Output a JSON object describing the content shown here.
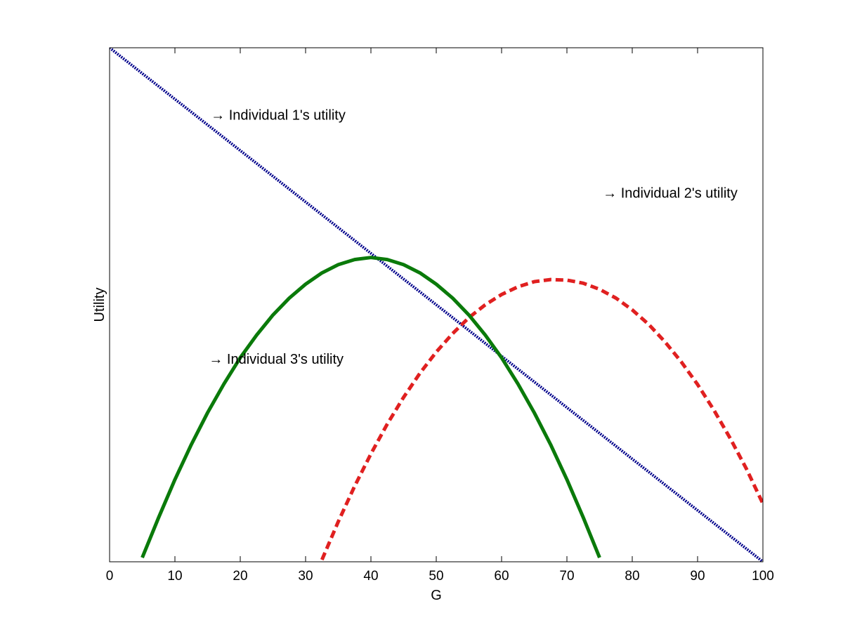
{
  "chart_data": {
    "type": "line",
    "title": "",
    "xlabel": "G",
    "ylabel": "Utility",
    "xlim": [
      0,
      100
    ],
    "ylim": [
      0,
      100
    ],
    "xticks": [
      "0",
      "10",
      "20",
      "30",
      "40",
      "50",
      "60",
      "70",
      "80",
      "90",
      "100"
    ],
    "yticks_shown": false,
    "grid": false,
    "legend": "none",
    "x": [
      0,
      2.5,
      5,
      7.5,
      10,
      12.5,
      15,
      17.5,
      20,
      22.5,
      25,
      27.5,
      30,
      32.5,
      35,
      37.5,
      40,
      42.5,
      45,
      47.5,
      50,
      52.5,
      55,
      57.5,
      60,
      62.5,
      65,
      67.5,
      70,
      72.5,
      75,
      77.5,
      80,
      82.5,
      85,
      87.5,
      90,
      92.5,
      95,
      97.5,
      100
    ],
    "series": [
      {
        "key": "ind1",
        "color": "#00008B",
        "style": "dotted",
        "values": [
          100,
          97.5,
          95,
          92.5,
          90,
          87.5,
          85,
          82.5,
          80,
          77.5,
          75,
          72.5,
          70,
          67.5,
          65,
          62.5,
          60,
          57.5,
          55,
          52.5,
          50,
          47.5,
          45,
          42.5,
          40,
          37.5,
          35,
          32.5,
          30,
          27.5,
          25,
          22.5,
          20,
          17.5,
          15,
          12.5,
          10,
          7.5,
          5,
          2.5,
          0
        ]
      },
      {
        "key": "ind2",
        "color": "#E02020",
        "style": "dashed",
        "values": [
          null,
          null,
          null,
          null,
          null,
          null,
          null,
          null,
          null,
          null,
          null,
          null,
          null,
          0.4,
          7.8,
          14.7,
          21.0,
          26.8,
          32.0,
          36.7,
          40.8,
          44.4,
          47.5,
          50.0,
          52.0,
          53.5,
          54.5,
          54.9,
          54.8,
          54.2,
          53.0,
          51.3,
          49.0,
          46.2,
          42.8,
          38.9,
          34.5,
          29.5,
          24.0,
          18.0,
          11.3
        ]
      },
      {
        "key": "ind3",
        "color": "#0A7A0A",
        "style": "solid",
        "values": [
          null,
          null,
          0.8,
          8.6,
          16.0,
          22.8,
          29.0,
          34.6,
          39.7,
          44.1,
          48.0,
          51.3,
          54.0,
          56.2,
          57.8,
          58.8,
          59.2,
          58.8,
          57.8,
          56.2,
          54.0,
          51.3,
          48.0,
          44.1,
          39.7,
          34.6,
          29.0,
          22.8,
          16.0,
          8.6,
          0.8,
          null,
          null,
          null,
          null,
          null,
          null,
          null,
          null,
          null,
          null
        ]
      }
    ],
    "annotations": [
      {
        "text": "→ Individual 1's utility",
        "x": 15.5,
        "y": 86
      },
      {
        "text": "→ Individual 2's utility",
        "x": 75.5,
        "y": 70.8
      },
      {
        "text": "→ Individual 3's utility",
        "x": 15.2,
        "y": 38.5
      }
    ]
  }
}
